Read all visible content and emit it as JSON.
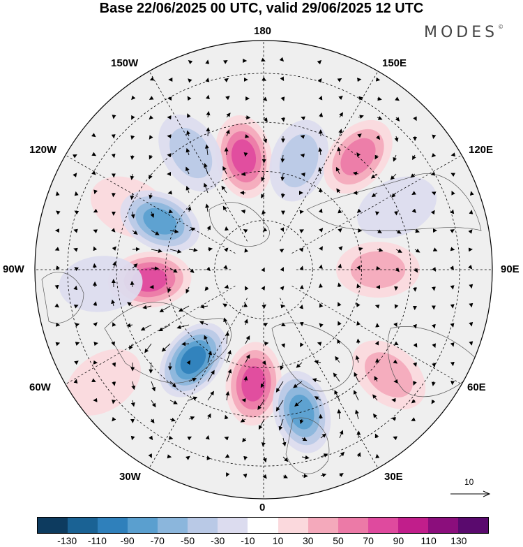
{
  "title": "Base 22/06/2025 00 UTC, valid 29/06/2025 12 UTC",
  "brand": "MODES",
  "brand_mark": "©",
  "longitude_labels": {
    "lon_180": "180",
    "lon_150w": "150W",
    "lon_150e": "150E",
    "lon_120w": "120W",
    "lon_120e": "120E",
    "lon_90w": "90W",
    "lon_90e": "90E",
    "lon_60w": "60W",
    "lon_60e": "60E",
    "lon_30w": "30W",
    "lon_30e": "30E",
    "lon_0": "0"
  },
  "reference_vector": {
    "label": "10"
  },
  "colorbar": {
    "colors": [
      "#0d3b5f",
      "#1a6294",
      "#2f80bb",
      "#5a9fcf",
      "#8bb6dc",
      "#b9c9e6",
      "#dcdcef",
      "#ffffff",
      "#fbd9dd",
      "#f4a9bb",
      "#ec7aa7",
      "#df4a9e",
      "#c11e8b",
      "#8b0e7c",
      "#5a0a6e"
    ],
    "ticks": [
      "-130",
      "-110",
      "-90",
      "-70",
      "-50",
      "-30",
      "-10",
      "10",
      "30",
      "50",
      "70",
      "90",
      "110",
      "130"
    ]
  },
  "anomaly_centers": [
    {
      "lat": 55,
      "lon": -170,
      "value": 80
    },
    {
      "lat": 55,
      "lon": 162,
      "value": -55
    },
    {
      "lat": 45,
      "lon": 140,
      "value": 70
    },
    {
      "lat": 48,
      "lon": -148,
      "value": -40
    },
    {
      "lat": 45,
      "lon": -115,
      "value": 35
    },
    {
      "lat": 55,
      "lon": -115,
      "value": -80
    },
    {
      "lat": 55,
      "lon": -85,
      "value": 85
    },
    {
      "lat": 40,
      "lon": -85,
      "value": -35
    },
    {
      "lat": 55,
      "lon": -38,
      "value": -100
    },
    {
      "lat": 55,
      "lon": -5,
      "value": 90
    },
    {
      "lat": 45,
      "lon": 15,
      "value": -95
    },
    {
      "lat": 40,
      "lon": 50,
      "value": 45
    },
    {
      "lat": 55,
      "lon": 90,
      "value": 45
    },
    {
      "lat": 45,
      "lon": 115,
      "value": -35
    },
    {
      "lat": 30,
      "lon": -55,
      "value": 25
    }
  ]
}
